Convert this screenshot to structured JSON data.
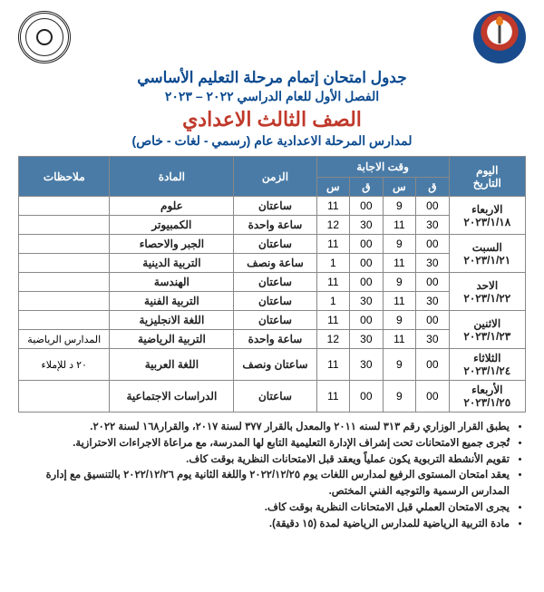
{
  "header": {
    "line1": "جدول امتحان إتمام مرحلة التعليم الأساسي",
    "line2": "الفصل الأول للعام الدراسي ٢٠٢٢ – ٢٠٢٣",
    "grade": "الصف الثالث الاعدادي",
    "line4": "لمدارس المرحلة الاعدادية عام (رسمي - لغات - خاص)"
  },
  "table": {
    "headers": {
      "day": "اليوم\nالتاريخ",
      "answer_time": "وقت الاجابة",
      "from_m": "ق",
      "from_h": "س",
      "to_m": "ق",
      "to_h": "س",
      "duration": "الزمن",
      "subject": "المادة",
      "notes": "ملاحظات"
    },
    "days": [
      {
        "day": "الاربعاء",
        "date": "٢٠٢٣/١/١٨",
        "rows": [
          {
            "fm": "00",
            "fh": "9",
            "tm": "00",
            "th": "11",
            "dur": "ساعتان",
            "subj": "علوم",
            "notes": ""
          },
          {
            "fm": "30",
            "fh": "11",
            "tm": "30",
            "th": "12",
            "dur": "ساعة واحدة",
            "subj": "الكمبيوتر",
            "notes": ""
          }
        ]
      },
      {
        "day": "السبت",
        "date": "٢٠٢٣/١/٢١",
        "rows": [
          {
            "fm": "00",
            "fh": "9",
            "tm": "00",
            "th": "11",
            "dur": "ساعتان",
            "subj": "الجبر والاحصاء",
            "notes": ""
          },
          {
            "fm": "30",
            "fh": "11",
            "tm": "00",
            "th": "1",
            "dur": "ساعة ونصف",
            "subj": "التربية الدينية",
            "notes": ""
          }
        ]
      },
      {
        "day": "الاحد",
        "date": "٢٠٢٣/١/٢٢",
        "rows": [
          {
            "fm": "00",
            "fh": "9",
            "tm": "00",
            "th": "11",
            "dur": "ساعتان",
            "subj": "الهندسة",
            "notes": ""
          },
          {
            "fm": "30",
            "fh": "11",
            "tm": "30",
            "th": "1",
            "dur": "ساعتان",
            "subj": "التربية الفنية",
            "notes": ""
          }
        ]
      },
      {
        "day": "الاثنين",
        "date": "٢٠٢٣/١/٢٣",
        "rows": [
          {
            "fm": "00",
            "fh": "9",
            "tm": "00",
            "th": "11",
            "dur": "ساعتان",
            "subj": "اللغة الانجليزية",
            "notes": ""
          },
          {
            "fm": "30",
            "fh": "11",
            "tm": "30",
            "th": "12",
            "dur": "ساعة واحدة",
            "subj": "التربية الرياضية",
            "notes": "المدارس الرياضية"
          }
        ]
      },
      {
        "day": "الثلاثاء",
        "date": "٢٠٢٣/١/٢٤",
        "rows": [
          {
            "fm": "00",
            "fh": "9",
            "tm": "30",
            "th": "11",
            "dur": "ساعتان ونصف",
            "subj": "اللغة العربية",
            "notes": "٢٠ د للإملاء"
          }
        ]
      },
      {
        "day": "الأربعاء",
        "date": "٢٠٢٣/١/٢٥",
        "rows": [
          {
            "fm": "00",
            "fh": "9",
            "tm": "00",
            "th": "11",
            "dur": "ساعتان",
            "subj": "الدراسات الاجتماعية",
            "notes": ""
          }
        ]
      }
    ]
  },
  "footer": [
    "يطبق القرار الوزاري رقم ٣١٣ لسنه ٢٠١١ والمعدل بالقرار ٣٧٧ لسنة ٢٠١٧، والقرار١٦٨ لسنة ٢٠٢٢.",
    "تُجرى جميع الامتحانات تحت إشراف الإدارة التعليمية التابع لها المدرسة، مع مراعاة الاجراءات الاحترازية.",
    "تقويم الأنشطة التربوية يكون عملياً ويعقد قبل الامتحانات النظرية بوقت كاف.",
    "يعقد امتحان المستوى الرفيع لمدارس اللغات يوم ٢٠٢٢/١٢/٢٥ واللغة الثانية يوم ٢٠٢٢/١٢/٢٦ بالتنسيق مع إدارة المدارس الرسمية والتوجيه الفني المختص.",
    "يجرى الامتحان العملي قبل الامتحانات النظرية بوقت كاف.",
    "مادة التربية الرياضية للمدارس الرياضية لمدة (١٥ دقيقة)."
  ],
  "colors": {
    "header_bg": "#4a7ba6",
    "title_blue": "#0b4a8f",
    "title_red": "#c0392b",
    "border": "#888888",
    "background": "#ffffff"
  }
}
